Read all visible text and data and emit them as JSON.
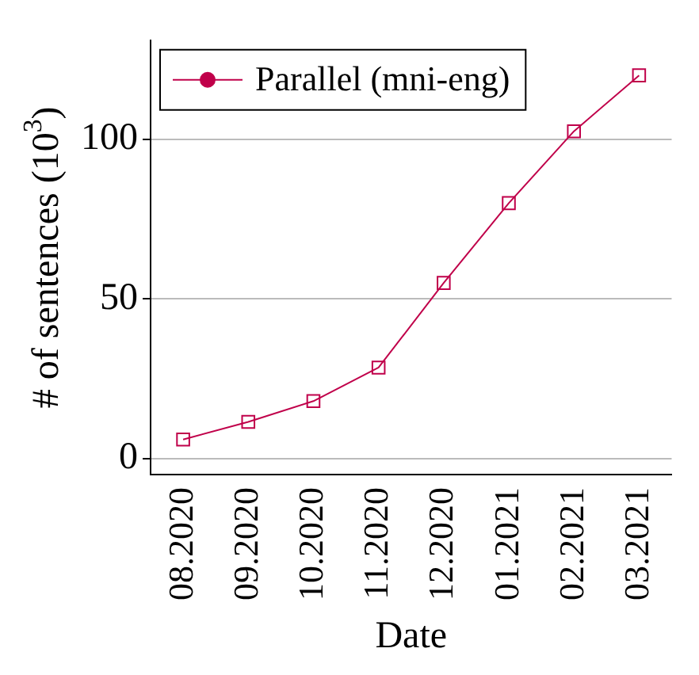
{
  "chart_data": {
    "type": "line",
    "xlabel": "Date",
    "ylabel": "# of sentences (10$^{3}$)",
    "categories": [
      "08.2020",
      "09.2020",
      "10.2020",
      "11.2020",
      "12.2020",
      "01.2021",
      "02.2021",
      "03.2021"
    ],
    "series": [
      {
        "name": "Parallel (mni-eng)",
        "color": "#c0004a",
        "values": [
          6,
          11.5,
          18,
          28.5,
          55,
          80,
          102.5,
          120
        ]
      }
    ],
    "ylim": [
      -5,
      131
    ],
    "yticks": [
      0,
      50,
      100
    ],
    "grid": "y",
    "legend": "top left",
    "marker": "square",
    "line_style": "solid"
  }
}
